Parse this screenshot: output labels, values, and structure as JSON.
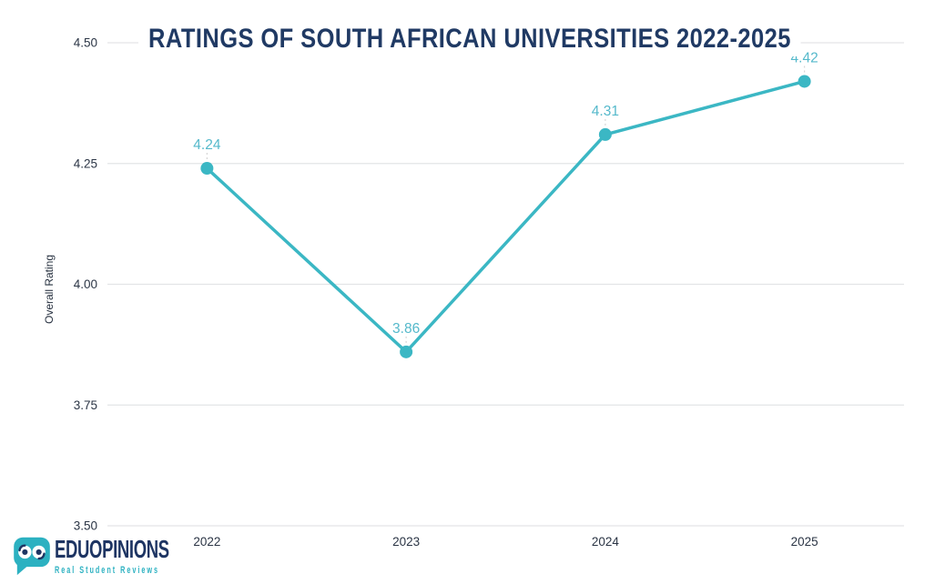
{
  "title": "RATINGS OF SOUTH AFRICAN UNIVERSITIES 2022-2025",
  "ylabel": "Overall Rating",
  "logo": {
    "brand_bold": "EDU",
    "brand_regular": "OPINIONS",
    "tagline": "Real Student Reviews"
  },
  "colors": {
    "line": "#3bb7c4",
    "point_label": "#55b9cb",
    "grid": "#e3e4e6",
    "tick_text": "#2b3545",
    "title_navy": "#203a64",
    "logo_navy": "#1e3563",
    "logo_teal": "#2cb1c1",
    "connector": "#d6d6d6",
    "background": "#ffffff"
  },
  "chart_data": {
    "type": "line",
    "categories": [
      "2022",
      "2023",
      "2024",
      "2025"
    ],
    "values": [
      4.24,
      3.86,
      4.31,
      4.42
    ],
    "point_labels": [
      "4.24",
      "3.86",
      "4.31",
      "4.42"
    ],
    "title": "RATINGS OF SOUTH AFRICAN UNIVERSITIES 2022-2025",
    "xlabel": "",
    "ylabel": "Overall Rating",
    "ylim": [
      3.5,
      4.5
    ],
    "yticks": [
      "4.50",
      "4.25",
      "4.00",
      "3.75",
      "3.50"
    ],
    "grid": true,
    "legend": false
  }
}
